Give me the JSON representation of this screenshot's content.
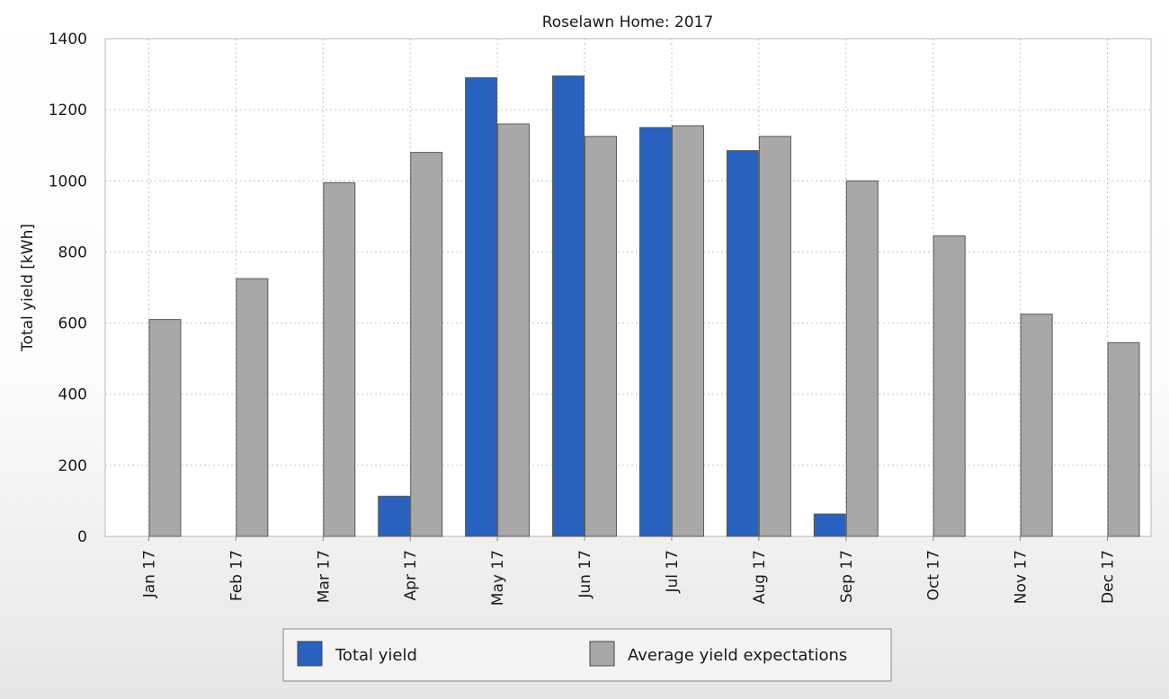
{
  "chart_data": {
    "type": "bar",
    "title": "Roselawn Home: 2017",
    "ylabel": "Total yield [kWh]",
    "xlabel": "",
    "ylim": [
      0,
      1400
    ],
    "yticks": [
      0,
      200,
      400,
      600,
      800,
      1000,
      1200,
      1400
    ],
    "grid": true,
    "legend_position": "bottom",
    "categories": [
      "Jan 17",
      "Feb 17",
      "Mar 17",
      "Apr 17",
      "May 17",
      "Jun 17",
      "Jul 17",
      "Aug 17",
      "Sep 17",
      "Oct 17",
      "Nov 17",
      "Dec 17"
    ],
    "series": [
      {
        "name": "Total yield",
        "color": "#2962BE",
        "values": [
          0,
          0,
          0,
          113,
          1290,
          1295,
          1150,
          1085,
          63,
          0,
          0,
          0
        ]
      },
      {
        "name": "Average yield expectations",
        "color": "#A8A8A8",
        "values": [
          610,
          725,
          995,
          1080,
          1160,
          1125,
          1155,
          1125,
          1000,
          845,
          625,
          545
        ]
      }
    ]
  }
}
